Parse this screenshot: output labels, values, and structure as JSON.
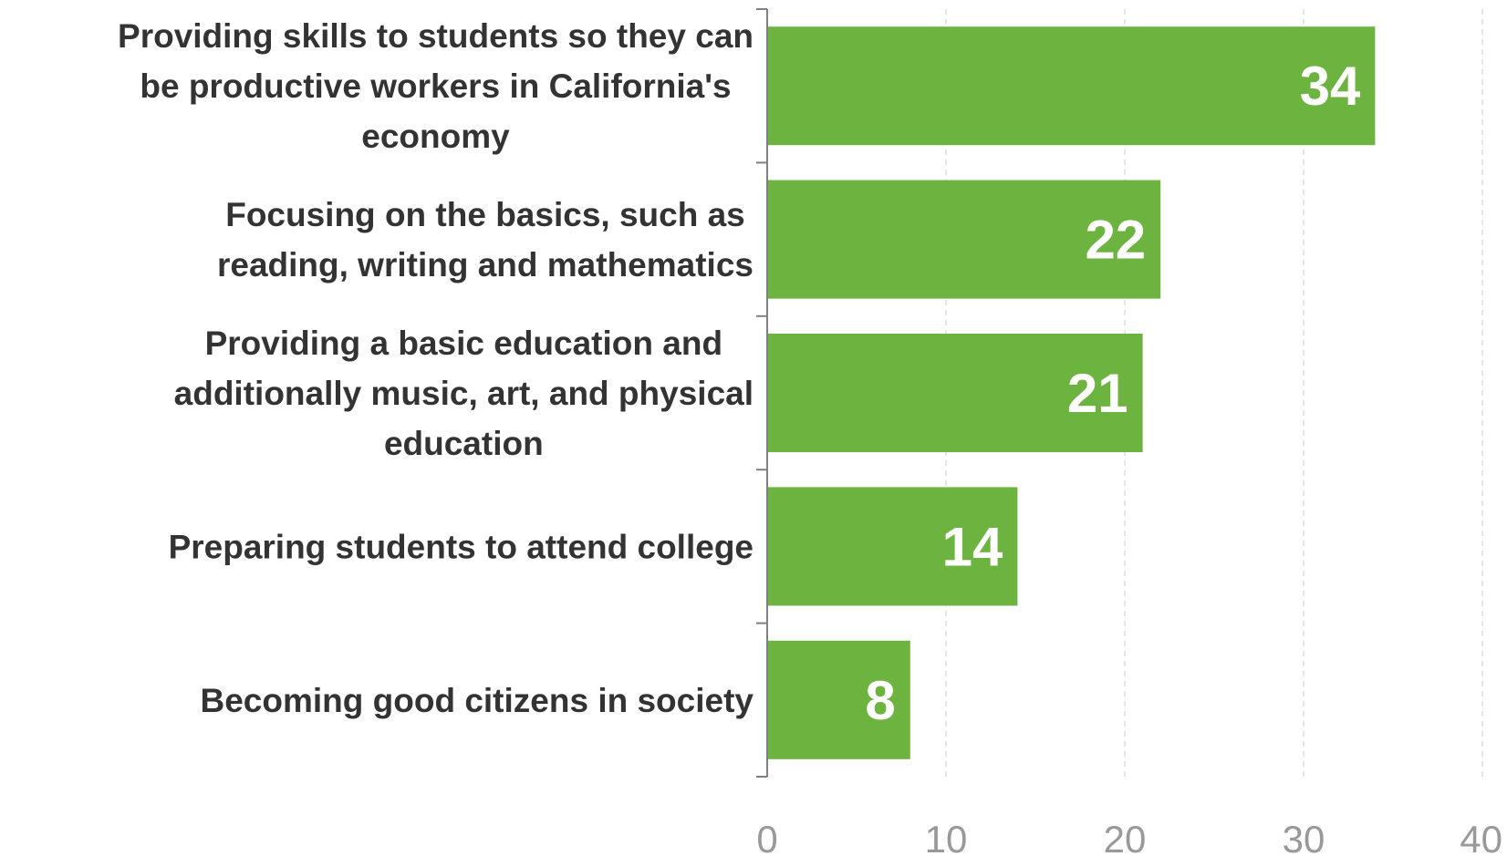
{
  "chart_data": {
    "type": "bar",
    "orientation": "horizontal",
    "categories": [
      [
        "Providing skills to students so they can",
        "be productive workers in California's",
        "economy"
      ],
      [
        "Focusing on the basics, such as",
        "reading, writing and mathematics"
      ],
      [
        "Providing a basic education and",
        "additionally music, art, and physical",
        "education"
      ],
      [
        "Preparing students to attend college"
      ],
      [
        "Becoming good citizens in society"
      ]
    ],
    "values": [
      34,
      22,
      21,
      14,
      8
    ],
    "data_labels": [
      "34",
      "22",
      "21",
      "14",
      "8"
    ],
    "xlim": [
      0,
      40
    ],
    "x_ticks": [
      0,
      10,
      20,
      30,
      40
    ],
    "x_tick_labels": [
      "0",
      "10",
      "20",
      "30",
      "40"
    ],
    "grid": "vertical dashed",
    "title": "",
    "xlabel": "",
    "ylabel": "",
    "colors": {
      "bar": "#6db33f",
      "axis": "#808080",
      "grid": "#d9d9d9",
      "category_text": "#333333",
      "tick_text": "#999999",
      "value_text": "#ffffff"
    }
  }
}
